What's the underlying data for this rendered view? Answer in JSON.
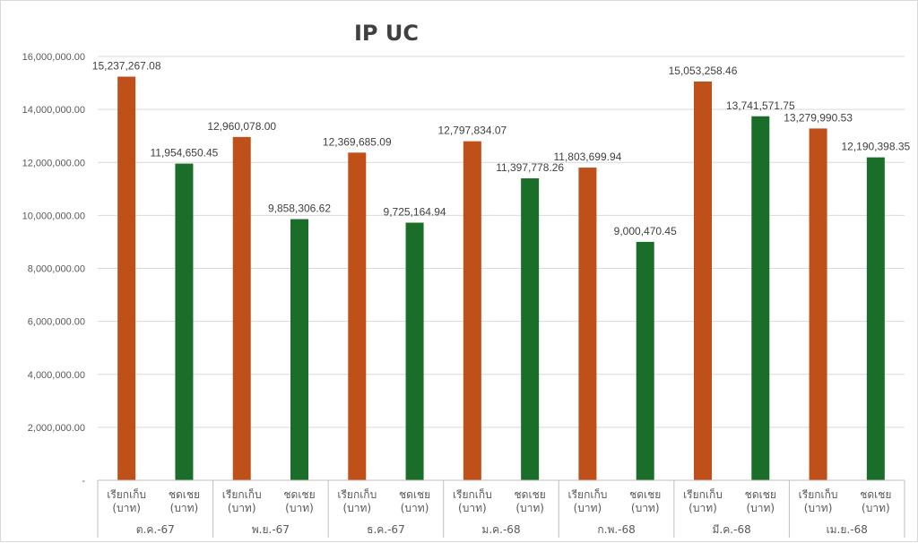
{
  "chart_data": {
    "type": "bar",
    "title": "IP UC",
    "xlabel": "",
    "ylabel": "",
    "ylim": [
      0,
      16000000
    ],
    "yticks": [
      "-",
      "2,000,000.00",
      "4,000,000.00",
      "6,000,000.00",
      "8,000,000.00",
      "10,000,000.00",
      "12,000,000.00",
      "14,000,000.00",
      "16,000,000.00"
    ],
    "grid": true,
    "groups": [
      "ต.ค.-67",
      "พ.ย.-67",
      "ธ.ค.-67",
      "ม.ค.-68",
      "ก.พ.-68",
      "มี.ค.-68",
      "เม.ย.-68"
    ],
    "category_lines": [
      [
        "เรียกเก็บ",
        "(บาท)"
      ],
      [
        "ชดเชย",
        "(บาท)"
      ]
    ],
    "series": [
      {
        "color": "#c0501a",
        "values": [
          15237267.08,
          12960078.0,
          12369685.09,
          12797834.07,
          11803699.94,
          15053258.46,
          13279990.53
        ],
        "labels": [
          "15,237,267.08",
          "12,960,078.00",
          "12,369,685.09",
          "12,797,834.07",
          "11,803,699.94",
          "15,053,258.46",
          "13,279,990.53"
        ]
      },
      {
        "color": "#1a6e2a",
        "values": [
          11954650.45,
          9858306.62,
          9725164.94,
          11397778.26,
          9000470.45,
          13741571.75,
          12190398.35
        ],
        "labels": [
          "11,954,650.45",
          "9,858,306.62",
          "9,725,164.94",
          "11,397,778.26",
          "9,000,470.45",
          "13,741,571.75",
          "12,190,398.35"
        ]
      }
    ]
  }
}
